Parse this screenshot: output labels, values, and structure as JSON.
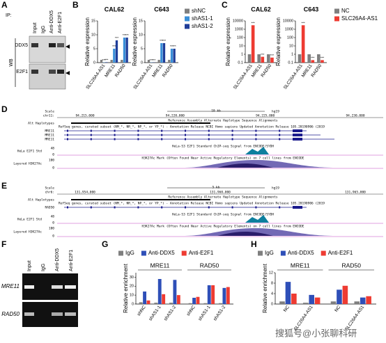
{
  "figure": {
    "panel_labels": [
      "A",
      "B",
      "C",
      "D",
      "E",
      "F",
      "G",
      "H"
    ],
    "watermark": "搜狐号@小张聊科研"
  },
  "blot": {
    "ip_label": "IP:",
    "lanes": [
      "Input",
      "IgG",
      "Anti-DDX5",
      "Anti-E2F1"
    ],
    "wb_label": "WB",
    "proteins": [
      "DDX5",
      "E2F1"
    ]
  },
  "gel": {
    "lanes": [
      "Input",
      "IgG",
      "Anti-DDX5",
      "Anti-E2F1"
    ],
    "genes": [
      "MRE11",
      "RAD50"
    ]
  },
  "browser": [
    {
      "scale": "Scale",
      "chrom": "chr11:",
      "scalebar": "10 kb",
      "assembly": "hg19",
      "positions": [
        "94,215,000",
        "94,220,000",
        "94,225,000",
        "94,230,000"
      ],
      "alt": "Alt Haplotypes",
      "alt_desc": "Reference Assembly Alternate Haplotype Sequence Alignments",
      "genes": [
        "MRE11",
        "MRE11",
        "MRE11"
      ],
      "gene_desc": "RefSeq genes, curated subset (NM_*, NR_*, NP_*, or YP_*) - Annotation Release NCBI Homo sapiens Updated Annotation Release 105.20190906 (2019",
      "chip": "HeLa E2F1 Std",
      "chip_desc": "HeLa-S3 E2F1 Standard ChIP-seq Signal from ENCODE/SYDH",
      "chip_scale": [
        "48",
        "0"
      ],
      "h3": "Layered H3K27Ac",
      "h3_desc": "H3K27Ac Mark (Often Found Near Active Regulatory Elements) on 7 cell lines from ENCODE",
      "h3_scale": [
        "100",
        "0"
      ]
    },
    {
      "scale": "Scale",
      "chrom": "chr6:",
      "scalebar": "5 kb",
      "assembly": "hg19",
      "positions": [
        "131,954,000",
        "131,960,000",
        "131,965,000"
      ],
      "alt": "Alt Haplotypes",
      "alt_desc": "Reference Assembly Alternate Haplotype Sequence Alignments",
      "genes": [
        "RAD50"
      ],
      "gene_desc": "RefSeq genes, curated subset (NM_*, NR_*, NP_*, or YP_*) - Annotation Release NCBI Homo sapiens Updated Annotation Release 105.20190906 (2019",
      "chip": "HeLa E2F1 Std",
      "chip_desc": "HeLa-S3 E2F1 Standard ChIP-seq Signal from ENCODE/SYDH",
      "chip_scale": [
        "48",
        "0"
      ],
      "h3": "Layered H3K27Ac",
      "h3_desc": "H3K27Ac Mark (Often Found Near Active Regulatory Elements) on 7 cell lines from ENCODE",
      "h3_scale": [
        "100",
        "0"
      ]
    }
  ],
  "chart_data": [
    {
      "type": "bar",
      "title": "CAL62",
      "ylabel": "Relative expression",
      "categories": [
        "SLC26A4-AS1",
        "MRE11",
        "RAD50"
      ],
      "ylim": [
        0,
        15
      ],
      "yticks": [
        0,
        5,
        10,
        15
      ],
      "series": [
        {
          "color": "#7f7f7f",
          "values": [
            1,
            1,
            1
          ]
        },
        {
          "color": "#3a8fd8",
          "values": [
            0.1,
            5,
            9
          ],
          "stars": [
            "***",
            "***",
            "***"
          ]
        },
        {
          "color": "#1f3d99",
          "values": [
            0.15,
            8,
            9
          ],
          "stars": [
            "***",
            "***",
            "***"
          ]
        }
      ]
    },
    {
      "type": "bar",
      "title": "C643",
      "ylabel": "Relative expression",
      "categories": [
        "SLC26A4-AS1",
        "MRE11",
        "RAD50"
      ],
      "ylim": [
        0,
        15
      ],
      "yticks": [
        0,
        5,
        10,
        15
      ],
      "legend": true,
      "series": [
        {
          "name": "shNC",
          "color": "#7f7f7f",
          "values": [
            1,
            1,
            1
          ]
        },
        {
          "name": "shAS1-1",
          "color": "#3a8fd8",
          "values": [
            0.1,
            7,
            5
          ],
          "stars": [
            "***",
            "***",
            "***"
          ]
        },
        {
          "name": "shAS1-2",
          "color": "#1f3d99",
          "values": [
            0.1,
            7,
            5
          ],
          "stars": [
            "***",
            "***",
            "***"
          ]
        }
      ]
    },
    {
      "type": "bar",
      "title": "CAL62",
      "ylabel": "Relative expression",
      "categories": [
        "SLC26A4-AS1",
        "MRE11",
        "RAD50"
      ],
      "log_scale": true,
      "ylim": [
        0.1,
        10000
      ],
      "yticks": [
        0.1,
        1,
        10,
        100,
        1000,
        10000
      ],
      "series": [
        {
          "color": "#7f7f7f",
          "values": [
            1,
            1,
            1
          ]
        },
        {
          "color": "#ee3b32",
          "values": [
            3000,
            0.5,
            0.4
          ],
          "stars": [
            "***",
            "***",
            "***"
          ]
        }
      ]
    },
    {
      "type": "bar",
      "title": "C643",
      "ylabel": "Relative expression",
      "categories": [
        "SLC26A4-AS1",
        "MRE11",
        "RAD50"
      ],
      "log_scale": true,
      "ylim": [
        0.1,
        10000
      ],
      "yticks": [
        0.1,
        1,
        10,
        100,
        1000,
        10000
      ],
      "legend": true,
      "series": [
        {
          "name": "NC",
          "color": "#7f7f7f",
          "values": [
            1,
            1,
            1
          ]
        },
        {
          "name": "SLC26A4-AS1",
          "color": "#ee3b32",
          "values": [
            3000,
            0.2,
            0.2
          ],
          "stars": [
            "***",
            "***",
            "***"
          ]
        }
      ]
    },
    {
      "type": "bar",
      "ylabel": "Relative enrichment",
      "groups": [
        "MRE11",
        "RAD50"
      ],
      "categories": [
        "shNC",
        "shAS1-1",
        "shAS1-2",
        "shNC",
        "shAS1-1",
        "shAS1-2"
      ],
      "ylim": [
        0,
        35
      ],
      "yticks": [
        0,
        10,
        20,
        30
      ],
      "legend": true,
      "series": [
        {
          "name": "IgG",
          "color": "#7f7f7f",
          "values": [
            2,
            1.5,
            1.5,
            1,
            1,
            1
          ]
        },
        {
          "name": "Anti-DDX5",
          "color": "#2e4fb8",
          "values": [
            14,
            28,
            27,
            7,
            21,
            18
          ]
        },
        {
          "name": "Anti-E2F1",
          "color": "#ee3b32",
          "values": [
            4,
            11,
            10,
            8,
            21,
            19
          ]
        }
      ]
    },
    {
      "type": "bar",
      "ylabel": "Relative enrichment",
      "groups": [
        "MRE11",
        "RAD50"
      ],
      "categories": [
        "NC",
        "SLC26A4-AS1",
        "NC",
        "SLC26A4-AS1"
      ],
      "ylim": [
        0,
        12
      ],
      "yticks": [
        0,
        4,
        8,
        12
      ],
      "legend": true,
      "series": [
        {
          "name": "IgG",
          "color": "#7f7f7f",
          "values": [
            1,
            0.5,
            1,
            1
          ]
        },
        {
          "name": "Anti-DDX5",
          "color": "#2e4fb8",
          "values": [
            8.5,
            3.5,
            5.5,
            2.5
          ]
        },
        {
          "name": "Anti-E2F1",
          "color": "#ee3b32",
          "values": [
            4,
            2.5,
            7,
            3
          ]
        }
      ]
    }
  ]
}
